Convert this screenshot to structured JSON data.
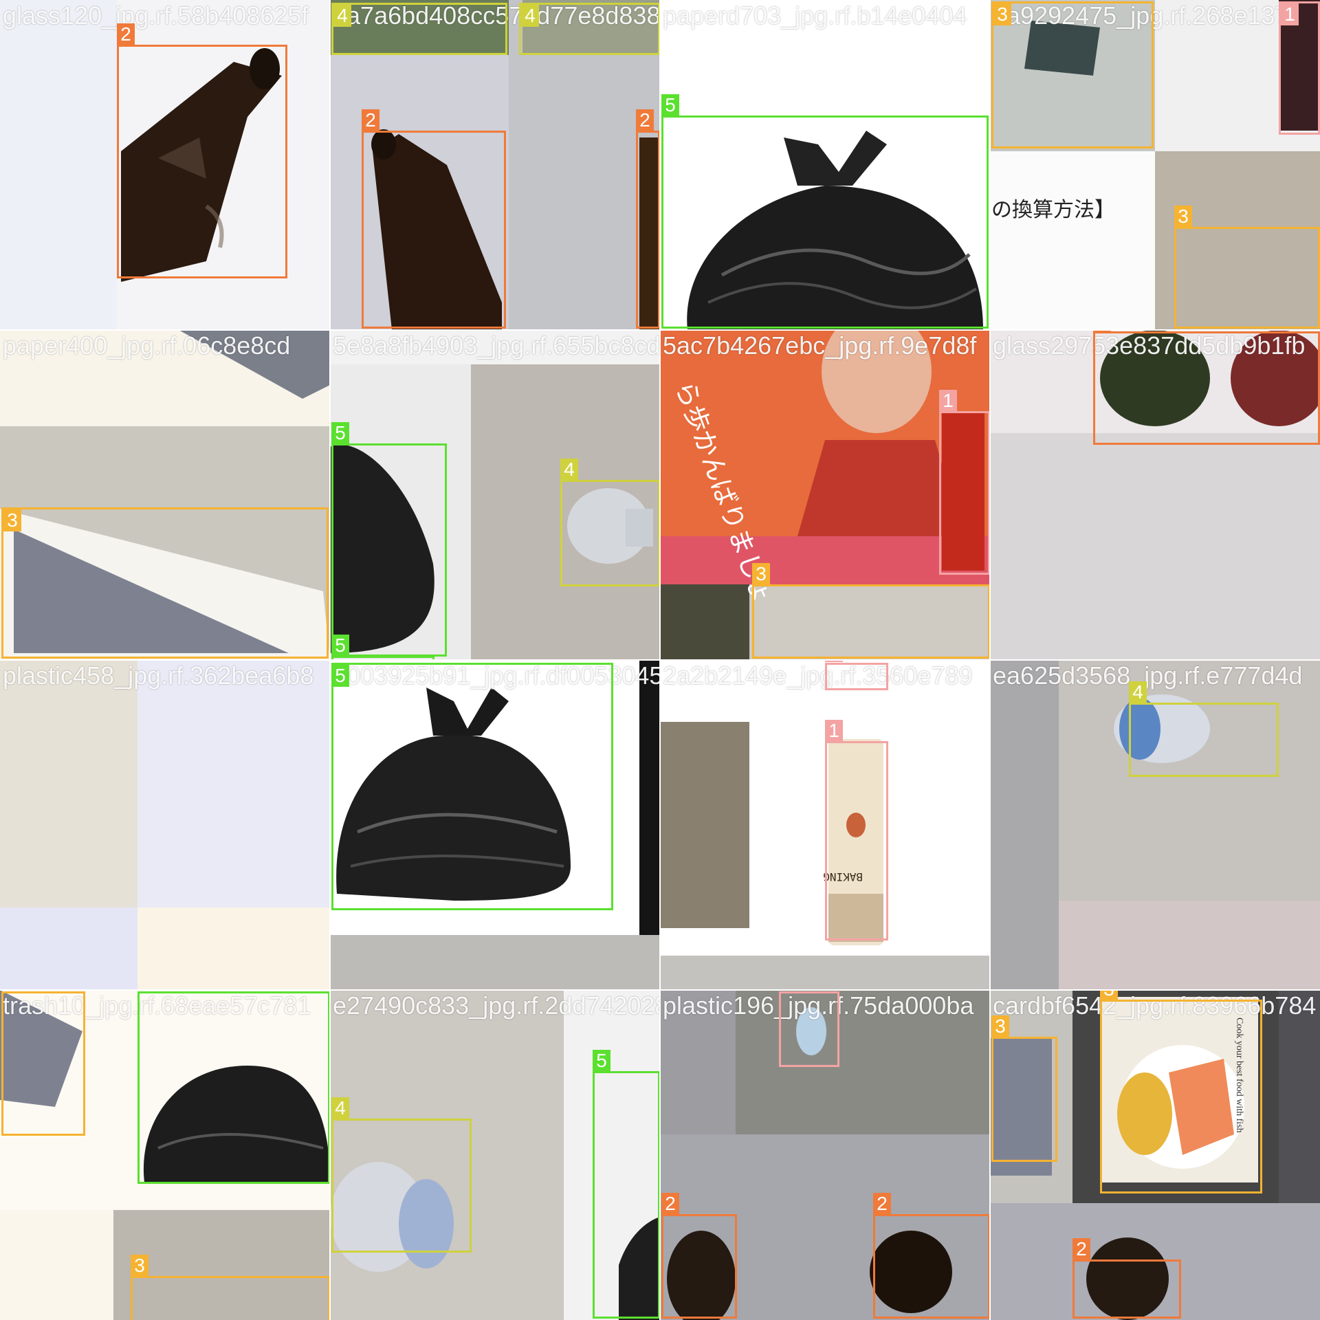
{
  "class_colors": {
    "1": "#f4a3a3",
    "2": "#f07a3a",
    "3": "#f5b331",
    "4": "#cfd23c",
    "5": "#5be030"
  },
  "tiles": [
    {
      "filename": "glass120_jpg.rf.58b408625f",
      "content": "brown glass bottle neck",
      "boxes": [
        {
          "cls": "2"
        }
      ]
    },
    {
      "filename": "4a7a6bd408cc573d77e8d838",
      "content": "brown glass bottle on grey",
      "boxes": [
        {
          "cls": "4"
        },
        {
          "cls": "4"
        },
        {
          "cls": "2"
        },
        {
          "cls": "2"
        }
      ]
    },
    {
      "filename": "paperd703_jpg.rf.b14e0404",
      "content": "black trash bag",
      "boxes": [
        {
          "cls": "5"
        }
      ]
    },
    {
      "filename": "3a9292475_jpg.rf.268e137",
      "content": "paper and japanese text",
      "boxes": [
        {
          "cls": "3"
        },
        {
          "cls": "1"
        },
        {
          "cls": "3"
        }
      ]
    },
    {
      "filename": "paper400_jpg.rf.06c8e8cd",
      "content": "paper envelope",
      "boxes": [
        {
          "cls": "3"
        }
      ]
    },
    {
      "filename": "5e8a8fb4903_jpg.rf.655bc8cd",
      "content": "black bag and plastic bottle",
      "boxes": [
        {
          "cls": "5"
        },
        {
          "cls": "4"
        },
        {
          "cls": "5"
        }
      ]
    },
    {
      "filename": "5ac7b4267ebc_jpg.rf.9e7d8f",
      "content": "advertisement with can",
      "boxes": [
        {
          "cls": "1"
        },
        {
          "cls": "3"
        }
      ]
    },
    {
      "filename": "glass29753e837dd5db9b1fb",
      "content": "glass bottle",
      "boxes": [
        {
          "cls": "2"
        }
      ]
    },
    {
      "filename": "plastic458_jpg.rf.362bea6b8",
      "content": "plain background",
      "boxes": []
    },
    {
      "filename": "6003925b91_jpg.rf.df0053045",
      "content": "black trash bag",
      "boxes": [
        {
          "cls": "5"
        }
      ]
    },
    {
      "filename": "2a2b2149e_jpg.rf.3560e789",
      "content": "baking powder can",
      "boxes": [
        {
          "cls": "1"
        },
        {
          "cls": "1"
        }
      ]
    },
    {
      "filename": "ea625d3568_jpg.rf.e777d4d",
      "content": "plastic bottle with blue cap",
      "boxes": [
        {
          "cls": "4"
        }
      ]
    },
    {
      "filename": "trash10_jpg.rf.68eae57c781",
      "content": "black trash bag",
      "boxes": [
        {
          "cls": "3"
        },
        {
          "cls": "5"
        },
        {
          "cls": "3"
        }
      ]
    },
    {
      "filename": "e27490c833_jpg.rf.2dd742028",
      "content": "plastic bottle",
      "boxes": [
        {
          "cls": "4"
        },
        {
          "cls": "5"
        }
      ]
    },
    {
      "filename": "plastic196_jpg.rf.75da000ba",
      "content": "ground and bottles",
      "boxes": [
        {
          "cls": "1"
        },
        {
          "cls": "2"
        },
        {
          "cls": "2"
        }
      ]
    },
    {
      "filename": "cardbf6542_jpg.rf.83966b784",
      "content": "cookbook and paper",
      "boxes": [
        {
          "cls": "3"
        },
        {
          "cls": "3"
        },
        {
          "cls": "2"
        }
      ]
    }
  ],
  "book_text": "Cook your best food with fish"
}
